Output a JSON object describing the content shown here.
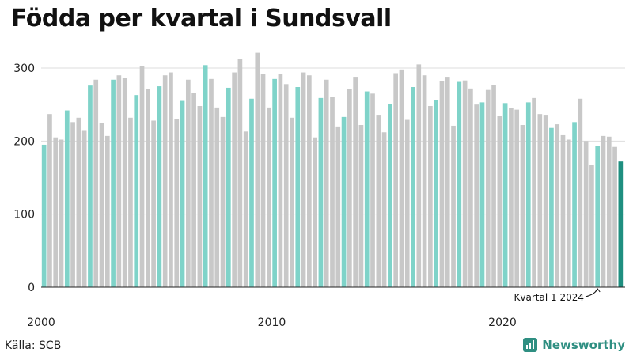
{
  "title": "Födda per kvartal i Sundsvall",
  "source": "Källa: SCB",
  "brand": "Newsworthy",
  "colors": {
    "q1": "#7fd3c9",
    "other": "#c8c8c8",
    "latest": "#1f8f80",
    "axis": "#222222",
    "grid": "#dddddd",
    "brand": "#2f8f82"
  },
  "chart_data": {
    "type": "bar",
    "title": "Födda per kvartal i Sundsvall",
    "xlabel": "",
    "ylabel": "",
    "ylim": [
      0,
      330
    ],
    "yticks": [
      0,
      100,
      200,
      300
    ],
    "xticks": [
      "2000",
      "2010",
      "2020"
    ],
    "grid": true,
    "highlight": "Q1 quarters colored teal, latest quarter dark teal",
    "annotation": "Kvartal 1 2024",
    "start_year": 2000,
    "values": [
      195,
      237,
      205,
      202,
      242,
      226,
      232,
      215,
      276,
      284,
      225,
      207,
      284,
      290,
      286,
      232,
      263,
      303,
      271,
      228,
      275,
      290,
      294,
      230,
      255,
      284,
      266,
      248,
      304,
      285,
      246,
      233,
      273,
      294,
      312,
      213,
      258,
      321,
      292,
      246,
      285,
      292,
      278,
      232,
      274,
      294,
      290,
      205,
      259,
      284,
      261,
      220,
      233,
      271,
      288,
      222,
      268,
      265,
      236,
      212,
      251,
      293,
      298,
      229,
      274,
      305,
      290,
      248,
      256,
      282,
      288,
      221,
      281,
      283,
      272,
      250,
      253,
      270,
      277,
      235,
      252,
      245,
      243,
      222,
      253,
      259,
      237,
      236,
      218,
      223,
      208,
      202,
      226,
      258,
      200,
      167,
      193,
      207,
      206,
      192,
      172
    ]
  }
}
